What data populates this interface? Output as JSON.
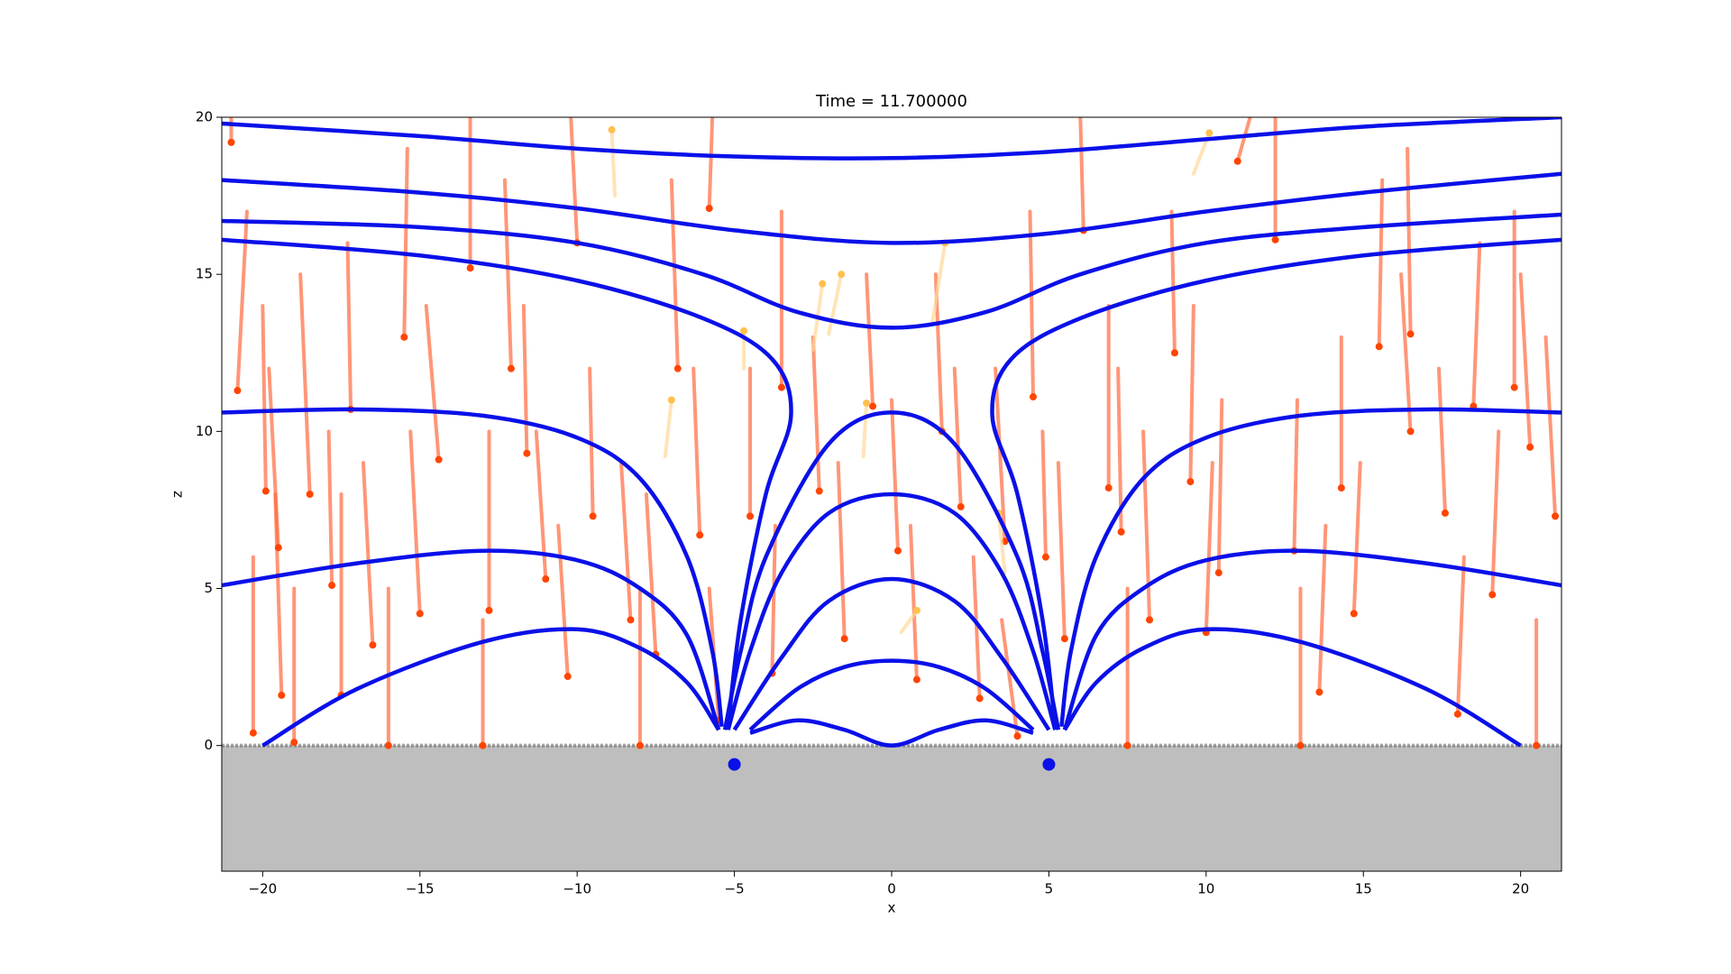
{
  "chart_data": {
    "type": "field",
    "title": "Time = 11.700000",
    "x_label": "x",
    "y_label": "z",
    "xlim": [
      -21.3,
      21.3
    ],
    "ylim": [
      -4,
      20
    ],
    "xticks": [
      {
        "value": -20,
        "label": "−20"
      },
      {
        "value": -15,
        "label": "−15"
      },
      {
        "value": -10,
        "label": "−10"
      },
      {
        "value": -5,
        "label": "−5"
      },
      0,
      5,
      10,
      15,
      20
    ],
    "yticks": [
      0,
      5,
      10,
      15,
      20
    ],
    "ground_color": "#bebebe",
    "field_line_color": "#0a10e8",
    "field_lines": [
      {
        "x": [
          -21.3,
          -15,
          -10,
          -5,
          0,
          5,
          10,
          15,
          21.3
        ],
        "y": [
          19.8,
          19.4,
          19.0,
          18.75,
          18.7,
          18.9,
          19.3,
          19.7,
          20
        ]
      },
      {
        "x": [
          -21.3,
          -15,
          -10,
          -5,
          0,
          5,
          10,
          15,
          21.3
        ],
        "y": [
          18,
          17.6,
          17.1,
          16.4,
          16,
          16.3,
          17,
          17.6,
          18.2
        ]
      },
      {
        "x": [
          -21.3,
          -15,
          -10,
          -6,
          -3,
          0,
          3,
          6,
          10,
          15,
          21.3
        ],
        "y": [
          16.7,
          16.5,
          16,
          15,
          13.8,
          13.3,
          13.8,
          15,
          16,
          16.5,
          16.9
        ]
      },
      {
        "x": [
          -21.3,
          -15,
          -10,
          -6,
          -3.8,
          -3.2,
          -4,
          -4.8,
          -5.2
        ],
        "y": [
          16.1,
          15.6,
          14.8,
          13.6,
          12.3,
          10.5,
          8,
          4,
          0.6
        ]
      },
      {
        "x": [
          21.3,
          15,
          10,
          6,
          3.8,
          3.2,
          4,
          4.8,
          5.2
        ],
        "y": [
          16.1,
          15.6,
          14.8,
          13.6,
          12.3,
          10.5,
          8,
          4,
          0.6
        ]
      },
      {
        "x": [
          -21.3,
          -17,
          -13,
          -10,
          -8,
          -6.5,
          -5.7,
          -5.4
        ],
        "y": [
          10.6,
          10.7,
          10.5,
          9.8,
          8.5,
          6,
          3,
          0.6
        ]
      },
      {
        "x": [
          21.3,
          17,
          13,
          10,
          8,
          6.5,
          5.7,
          5.4
        ],
        "y": [
          10.6,
          10.7,
          10.5,
          9.8,
          8.5,
          6,
          3,
          0.6
        ]
      },
      {
        "x": [
          -21.3,
          -17,
          -13,
          -10,
          -8,
          -6.5,
          -5.5
        ],
        "y": [
          5.1,
          5.8,
          6.2,
          5.9,
          5,
          3.5,
          0.5
        ]
      },
      {
        "x": [
          21.3,
          17,
          13,
          10,
          8,
          6.5,
          5.5
        ],
        "y": [
          5.1,
          5.8,
          6.2,
          5.9,
          5,
          3.5,
          0.5
        ]
      },
      {
        "x": [
          -20,
          -17,
          -13,
          -10,
          -8,
          -6.5,
          -5.5
        ],
        "y": [
          0,
          1.8,
          3.3,
          3.7,
          3.1,
          2,
          0.5
        ]
      },
      {
        "x": [
          20,
          17,
          13,
          10,
          8,
          6.5,
          5.5
        ],
        "y": [
          0,
          1.8,
          3.3,
          3.7,
          3.1,
          2,
          0.5
        ]
      },
      {
        "x": [
          -5.3,
          -4.8,
          -4,
          -2,
          0,
          2,
          4,
          4.8,
          5.3
        ],
        "y": [
          0.5,
          3,
          6,
          9.6,
          10.6,
          9.6,
          6,
          3,
          0.5
        ]
      },
      {
        "x": [
          -5.2,
          -4.5,
          -3.5,
          -2,
          0,
          2,
          3.5,
          4.5,
          5.2
        ],
        "y": [
          0.5,
          3,
          5.5,
          7.4,
          8,
          7.4,
          5.5,
          3,
          0.5
        ]
      },
      {
        "x": [
          -5,
          -3.5,
          -2,
          0,
          2,
          3.5,
          5
        ],
        "y": [
          0.5,
          2.8,
          4.6,
          5.3,
          4.6,
          2.8,
          0.5
        ]
      },
      {
        "x": [
          -4.5,
          -3,
          -1.5,
          0,
          1.5,
          3,
          4.5
        ],
        "y": [
          0.5,
          1.8,
          2.5,
          2.7,
          2.5,
          1.8,
          0.5
        ]
      },
      {
        "x": [
          -4.5,
          -3,
          -1.5,
          0,
          1.5,
          3,
          4.5
        ],
        "y": [
          0.4,
          0.8,
          0.5,
          0,
          0.5,
          0.8,
          0.4
        ]
      }
    ],
    "particles": [
      {
        "color": "#ff4500",
        "trail_color": "#ff6a3d",
        "x": [
          -21,
          -20.8,
          -20.3,
          -19.9,
          -19.5,
          -19.4,
          -19,
          -18.5,
          -17.8,
          -17.5,
          -17.2,
          -16.5,
          -16,
          -15.5,
          -15,
          -14.4,
          -13.4,
          -13,
          -12.8,
          -12.1,
          -11.6,
          -11,
          -10.3,
          -10,
          -9.5,
          -8.3,
          -8,
          -7.5,
          -6.8,
          -6.1,
          -5.5,
          -5.8,
          -4.5,
          -3.8,
          -3.5,
          -2.3,
          -1.5,
          -0.6,
          0.2,
          0.8,
          1.6,
          2.2,
          2.8,
          3.6,
          4.0,
          4.5,
          4.9,
          5.5,
          6.1,
          6.9,
          7.3,
          7.5,
          8.2,
          9.0,
          9.5,
          10.0,
          10.4,
          11.0,
          12.2,
          12.8,
          13,
          13.6,
          14.3,
          14.7,
          15.5,
          16.5,
          16.5,
          17.6,
          18,
          18.5,
          19.1,
          19.8,
          20.3,
          21.1,
          20.5
        ],
        "y": [
          19.2,
          11.3,
          0.4,
          8.1,
          6.3,
          1.6,
          0.1,
          8.0,
          5.1,
          1.6,
          10.7,
          3.2,
          0,
          13,
          4.2,
          9.1,
          15.2,
          0,
          4.3,
          12,
          9.3,
          5.3,
          2.2,
          16,
          7.3,
          4.0,
          0,
          2.9,
          12,
          6.7,
          0.8,
          17.1,
          7.3,
          2.3,
          11.4,
          8.1,
          3.4,
          10.8,
          6.2,
          2.1,
          10.0,
          7.6,
          1.5,
          6.5,
          0.3,
          11.1,
          6.0,
          3.4,
          16.4,
          8.2,
          6.8,
          0,
          4.0,
          12.5,
          8.4,
          3.6,
          5.5,
          18.6,
          16.1,
          6.2,
          0,
          1.7,
          8.2,
          4.2,
          12.7,
          13.1,
          10.0,
          7.4,
          1.0,
          10.8,
          4.8,
          11.4,
          9.5,
          7.3,
          0
        ],
        "trail_x": [
          -21,
          -20.5,
          -20.3,
          -20,
          -19.8,
          -19.6,
          -19,
          -18.8,
          -17.9,
          -17.5,
          -17.3,
          -16.8,
          -16,
          -15.4,
          -15.3,
          -14.8,
          -13.4,
          -13,
          -12.8,
          -12.3,
          -11.7,
          -11.3,
          -10.6,
          -10.2,
          -9.6,
          -8.6,
          -8,
          -7.8,
          -7,
          -6.3,
          -5.8,
          -5.7,
          -4.5,
          -3.7,
          -3.5,
          -2.5,
          -1.7,
          -0.8,
          0,
          0.6,
          1.4,
          2.0,
          2.6,
          3.3,
          3.5,
          4.4,
          4.8,
          5.3,
          6,
          6.9,
          7.2,
          7.5,
          8.0,
          8.9,
          9.6,
          10.2,
          10.5,
          11.4,
          12.2,
          12.9,
          13,
          13.8,
          14.3,
          14.9,
          15.6,
          16.4,
          16.2,
          17.4,
          18.2,
          18.7,
          19.3,
          19.8,
          20.0,
          20.8,
          20.5
        ],
        "trail_y": [
          20,
          17,
          6,
          14,
          12,
          8,
          5,
          15,
          10,
          8,
          16,
          9,
          5,
          19,
          10,
          14,
          20,
          4,
          10,
          18,
          14,
          10,
          7,
          20,
          12,
          9,
          5,
          8,
          18,
          12,
          5,
          20,
          12,
          7,
          17,
          13,
          9,
          15,
          11,
          7,
          15,
          12,
          6,
          12,
          4,
          17,
          10,
          9,
          20,
          14,
          12,
          5,
          10,
          17,
          14,
          9,
          11,
          20,
          20,
          11,
          5,
          7,
          13,
          9,
          18,
          19,
          15,
          12,
          6,
          16,
          10,
          17,
          15,
          13,
          4
        ]
      },
      {
        "color": "#ffc04d",
        "trail_color": "#ffd89a",
        "x": [
          -8.9,
          -7,
          -4.7,
          -2.2,
          -1.6,
          -0.8,
          1.7,
          3.4,
          0.8,
          10.1
        ],
        "y": [
          19.6,
          11,
          13.2,
          14.7,
          15,
          10.9,
          16,
          7.4,
          4.3,
          19.5
        ],
        "trail_x": [
          -8.8,
          -7.2,
          -4.7,
          -2.5,
          -2,
          -0.9,
          1.3,
          3.6,
          0.3,
          9.6
        ],
        "trail_y": [
          17.5,
          9.2,
          12,
          12.6,
          13.1,
          9.2,
          13.5,
          5.5,
          3.6,
          18.2
        ]
      }
    ],
    "sources": {
      "color": "#0a10e8",
      "x": [
        -5,
        5
      ],
      "y": [
        -0.6,
        -0.6
      ]
    }
  }
}
